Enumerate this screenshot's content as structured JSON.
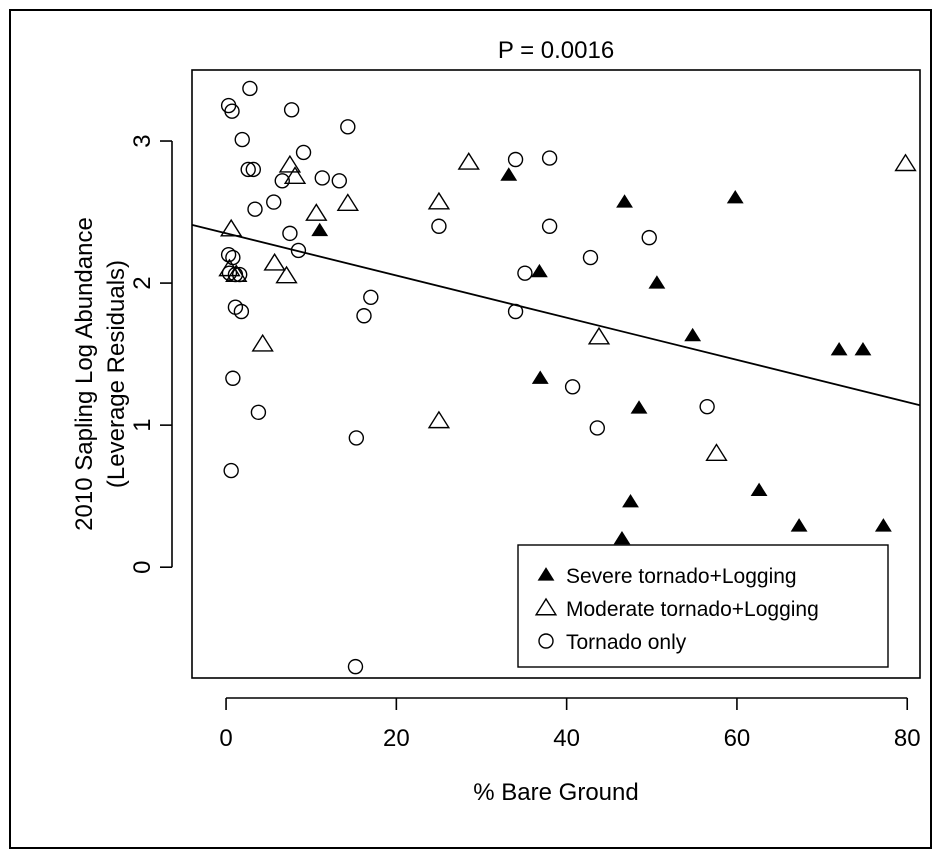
{
  "chart_data": {
    "type": "scatter",
    "title": "P = 0.0016",
    "xlabel": "% Bare Ground",
    "ylabel_lines": [
      "2010 Sapling Log Abundance",
      "(Leverage Residuals)"
    ],
    "xlim": [
      -4,
      81.5
    ],
    "ylim": [
      -0.78,
      3.5
    ],
    "x_ticks": [
      0,
      20,
      40,
      60,
      80
    ],
    "y_ticks": [
      0,
      1,
      2,
      3
    ],
    "grid": false,
    "legend_position": "bottom-right",
    "fit_line": {
      "x": [
        -4,
        81.5
      ],
      "y": [
        2.41,
        1.14
      ]
    },
    "series": [
      {
        "name": "Severe tornado+Logging",
        "marker": "filled-triangle",
        "points": [
          [
            11,
            2.37
          ],
          [
            33.2,
            2.76
          ],
          [
            36.8,
            2.08
          ],
          [
            36.9,
            1.33
          ],
          [
            46.8,
            2.57
          ],
          [
            48.5,
            1.12
          ],
          [
            50.6,
            2.0
          ],
          [
            54.8,
            1.63
          ],
          [
            59.8,
            2.6
          ],
          [
            72,
            1.53
          ],
          [
            74.8,
            1.53
          ],
          [
            47.5,
            0.46
          ],
          [
            46.5,
            0.2
          ],
          [
            62.6,
            0.54
          ],
          [
            67.3,
            0.29
          ],
          [
            77.2,
            0.29
          ]
        ]
      },
      {
        "name": "Moderate tornado+Logging",
        "marker": "open-triangle",
        "points": [
          [
            0.6,
            2.38
          ],
          [
            0.4,
            2.1
          ],
          [
            1.2,
            2.06
          ],
          [
            4.3,
            1.57
          ],
          [
            5.7,
            2.14
          ],
          [
            7.1,
            2.05
          ],
          [
            7.5,
            2.83
          ],
          [
            8.1,
            2.75
          ],
          [
            10.6,
            2.49
          ],
          [
            14.3,
            2.56
          ],
          [
            25,
            2.57
          ],
          [
            28.5,
            2.85
          ],
          [
            25,
            1.03
          ],
          [
            43.8,
            1.62
          ],
          [
            57.6,
            0.8
          ],
          [
            79.8,
            2.84
          ]
        ]
      },
      {
        "name": "Tornado only",
        "marker": "open-circle",
        "points": [
          [
            0.3,
            3.25
          ],
          [
            0.7,
            3.21
          ],
          [
            2.8,
            3.37
          ],
          [
            1.9,
            3.01
          ],
          [
            2.6,
            2.8
          ],
          [
            3.2,
            2.8
          ],
          [
            7.7,
            3.22
          ],
          [
            3.4,
            2.52
          ],
          [
            5.6,
            2.57
          ],
          [
            6.6,
            2.72
          ],
          [
            7.5,
            2.35
          ],
          [
            9.1,
            2.92
          ],
          [
            11.3,
            2.74
          ],
          [
            13.3,
            2.72
          ],
          [
            14.3,
            3.1
          ],
          [
            8.5,
            2.23
          ],
          [
            0.3,
            2.2
          ],
          [
            0.8,
            2.18
          ],
          [
            0.4,
            2.07
          ],
          [
            1.1,
            2.06
          ],
          [
            1.6,
            2.06
          ],
          [
            1.1,
            1.83
          ],
          [
            1.8,
            1.8
          ],
          [
            17,
            1.9
          ],
          [
            16.2,
            1.77
          ],
          [
            0.8,
            1.33
          ],
          [
            3.8,
            1.09
          ],
          [
            0.6,
            0.68
          ],
          [
            15.3,
            0.91
          ],
          [
            15.2,
            -0.7
          ],
          [
            25,
            2.4
          ],
          [
            34,
            2.87
          ],
          [
            38,
            2.88
          ],
          [
            38,
            2.4
          ],
          [
            35.1,
            2.07
          ],
          [
            34,
            1.8
          ],
          [
            42.8,
            2.18
          ],
          [
            49.7,
            2.32
          ],
          [
            40.7,
            1.27
          ],
          [
            43.6,
            0.98
          ],
          [
            56.5,
            1.13
          ]
        ]
      }
    ]
  }
}
